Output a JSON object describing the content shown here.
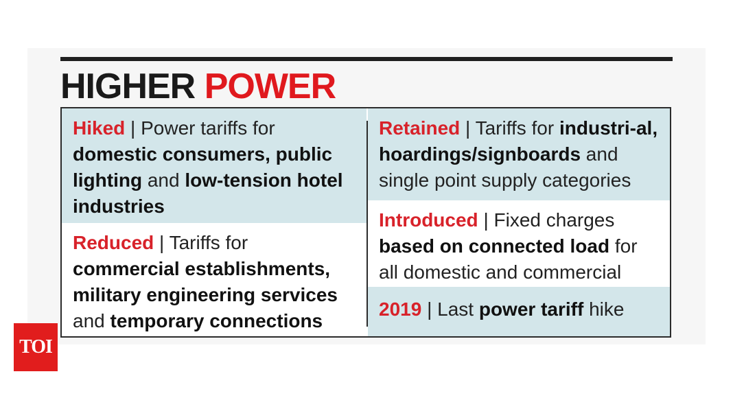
{
  "headline": {
    "part1": "HIGHER",
    "part2": "POWER"
  },
  "cells": {
    "hiked": {
      "keyword": "Hiked",
      "separator": " | ",
      "text1": "Power tariffs for ",
      "bold1": "domestic consumers, public lighting",
      "text2": " and ",
      "bold2": "low-tension hotel industries"
    },
    "reduced": {
      "keyword": "Reduced",
      "separator": " | ",
      "text1": "Tariffs for ",
      "bold1": "commercial establishments, military engineering services",
      "text2": " and ",
      "bold2": "temporary connections"
    },
    "retained": {
      "keyword": "Retained",
      "separator": " | ",
      "text1": "Tariffs for ",
      "bold1": "industri-al, hoardings/signboards",
      "text2": " and single point supply categories"
    },
    "introduced": {
      "keyword": "Introduced",
      "separator": " | ",
      "text1": "Fixed charges ",
      "bold1": "based on connected load",
      "text2": " for all domestic and commercial slabs"
    },
    "year": {
      "keyword": "2019",
      "separator": " | ",
      "text1": "Last ",
      "bold1": "power tariff",
      "text2": " hike"
    }
  },
  "badge": {
    "label": "TOI"
  },
  "colors": {
    "accent_red": "#e0191e",
    "tint_blue": "#d3e6ea",
    "badge_red": "#e11d1d"
  }
}
